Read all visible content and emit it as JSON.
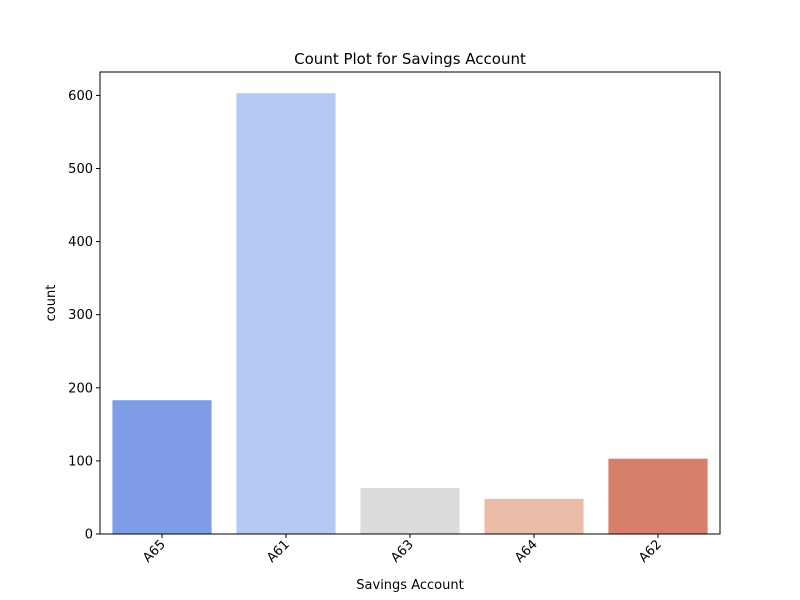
{
  "chart_data": {
    "type": "bar",
    "title": "Count Plot for Savings Account",
    "xlabel": "Savings Account",
    "ylabel": "count",
    "categories": [
      "A65",
      "A61",
      "A63",
      "A64",
      "A62"
    ],
    "values": [
      183,
      603,
      63,
      48,
      103
    ],
    "colors": [
      "#7f9ce6",
      "#b4caf4",
      "#dcdcdc",
      "#ecbda6",
      "#d87f6c"
    ],
    "ylim": [
      0,
      632
    ],
    "yticks": [
      0,
      100,
      200,
      300,
      400,
      500,
      600
    ],
    "xtick_rotation": 45,
    "grid": false,
    "legend": false
  }
}
